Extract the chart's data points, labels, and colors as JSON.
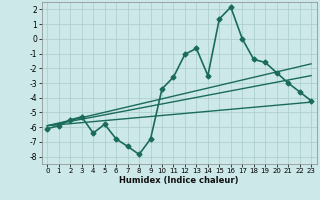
{
  "title": "",
  "xlabel": "Humidex (Indice chaleur)",
  "ylabel": "",
  "background_color": "#cce8e8",
  "grid_color": "#aacccc",
  "line_color": "#1a6b5a",
  "xlim": [
    -0.5,
    23.5
  ],
  "ylim": [
    -8.5,
    2.5
  ],
  "yticks": [
    2,
    1,
    0,
    -1,
    -2,
    -3,
    -4,
    -5,
    -6,
    -7,
    -8
  ],
  "xticks": [
    0,
    1,
    2,
    3,
    4,
    5,
    6,
    7,
    8,
    9,
    10,
    11,
    12,
    13,
    14,
    15,
    16,
    17,
    18,
    19,
    20,
    21,
    22,
    23
  ],
  "series": [
    {
      "x": [
        0,
        1,
        2,
        3,
        4,
        5,
        6,
        7,
        8,
        9,
        10,
        11,
        12,
        13,
        14,
        15,
        16,
        17,
        18,
        19,
        20,
        21,
        22,
        23
      ],
      "y": [
        -6.1,
        -5.9,
        -5.5,
        -5.3,
        -6.4,
        -5.8,
        -6.8,
        -7.3,
        -7.85,
        -6.8,
        -3.4,
        -2.6,
        -1.05,
        -0.65,
        -2.5,
        1.35,
        2.15,
        0.0,
        -1.4,
        -1.6,
        -2.3,
        -3.0,
        -3.6,
        -4.2
      ],
      "marker": "D",
      "markersize": 2.5,
      "linewidth": 1.2
    },
    {
      "x": [
        0,
        23
      ],
      "y": [
        -5.9,
        -1.7
      ],
      "marker": null,
      "linewidth": 1.0
    },
    {
      "x": [
        0,
        23
      ],
      "y": [
        -5.9,
        -2.5
      ],
      "marker": null,
      "linewidth": 1.0
    },
    {
      "x": [
        0,
        23
      ],
      "y": [
        -5.9,
        -4.3
      ],
      "marker": null,
      "linewidth": 1.0
    }
  ]
}
